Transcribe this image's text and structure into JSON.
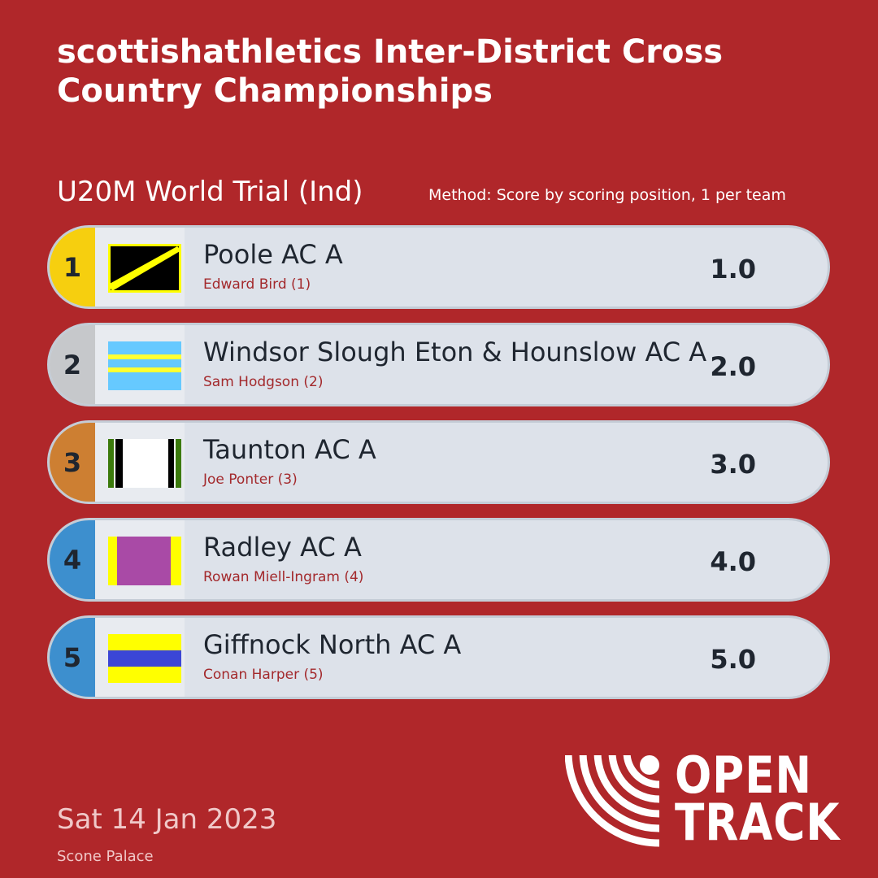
{
  "header": {
    "title": "scottishathletics Inter-District Cross Country Championships",
    "event": "U20M World Trial (Ind)",
    "method": "Method: Score by scoring position, 1 per team"
  },
  "results": [
    {
      "rank": "1",
      "team": "Poole AC A",
      "athlete": "Edward Bird (1)",
      "score": "1.0",
      "rank_color": "#f6cf0f"
    },
    {
      "rank": "2",
      "team": "Windsor Slough Eton & Hounslow AC A",
      "athlete": "Sam Hodgson (2)",
      "score": "2.0",
      "rank_color": "#c6c8cb"
    },
    {
      "rank": "3",
      "team": "Taunton AC A",
      "athlete": "Joe Ponter (3)",
      "score": "3.0",
      "rank_color": "#cd7f32"
    },
    {
      "rank": "4",
      "team": "Radley AC A",
      "athlete": "Rowan Miell-Ingram (4)",
      "score": "4.0",
      "rank_color": "#3d8fce"
    },
    {
      "rank": "5",
      "team": "Giffnock North AC A",
      "athlete": "Conan Harper (5)",
      "score": "5.0",
      "rank_color": "#3d8fce"
    }
  ],
  "footer": {
    "date": "Sat 14 Jan 2023",
    "venue": "Scone Palace"
  },
  "logo": {
    "line1": "OPEN",
    "line2": "TRACK"
  },
  "colors": {
    "background": "#b0272a",
    "row": "#dde2ea",
    "athlete_text": "#a3292c"
  }
}
